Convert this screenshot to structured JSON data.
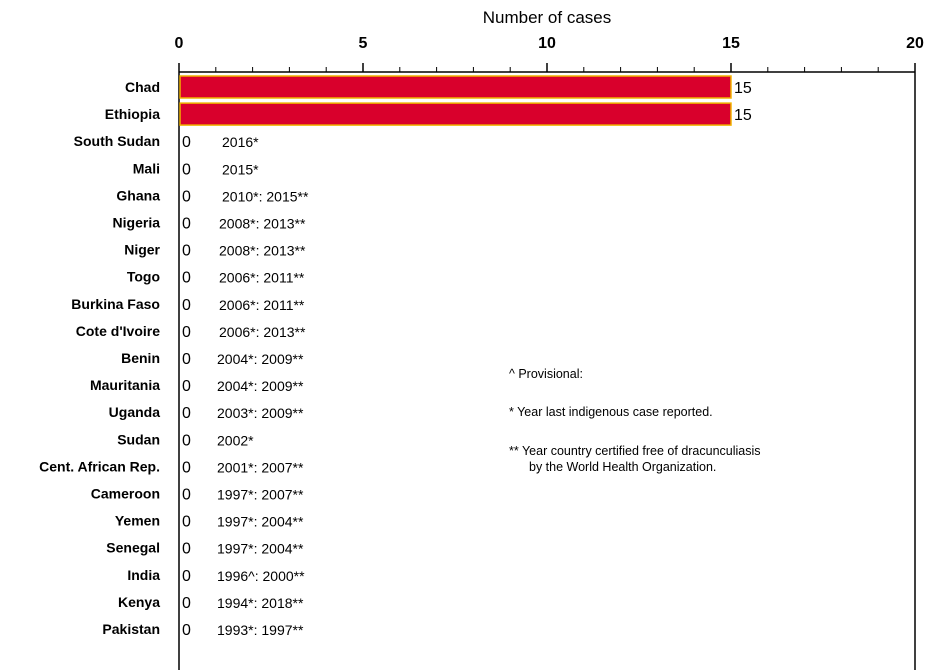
{
  "chart_data": {
    "type": "bar",
    "orientation": "horizontal",
    "xlabel": "Number of cases",
    "xlim": [
      0,
      20
    ],
    "x_ticks": [
      "0",
      "5",
      "10",
      "15",
      "20"
    ],
    "bar_color": "#d9002c",
    "bar_edge_color": "#f0b400",
    "categories": [
      "Chad",
      "Ethiopia",
      "South Sudan",
      "Mali",
      "Ghana",
      "Nigeria",
      "Niger",
      "Togo",
      "Burkina Faso",
      "Cote d'Ivoire",
      "Benin",
      "Mauritania",
      "Uganda",
      "Sudan",
      "Cent. African Rep.",
      "Cameroon",
      "Yemen",
      "Senegal",
      "India",
      "Kenya",
      "Pakistan"
    ],
    "values": [
      15,
      15,
      0,
      0,
      0,
      0,
      0,
      0,
      0,
      0,
      0,
      0,
      0,
      0,
      0,
      0,
      0,
      0,
      0,
      0,
      0
    ],
    "value_labels": [
      "15",
      "15",
      "0",
      "0",
      "0",
      "0",
      "0",
      "0",
      "0",
      "0",
      "0",
      "0",
      "0",
      "0",
      "0",
      "0",
      "0",
      "0",
      "0",
      "0",
      "0"
    ],
    "notes": [
      "",
      "",
      "2016*",
      "2015*",
      "2010*: 2015**",
      "2008*: 2013**",
      "2008*: 2013**",
      "2006*: 2011**",
      "2006*: 2011**",
      "2006*: 2013**",
      "2004*: 2009**",
      "2004*: 2009**",
      "2003*: 2009**",
      "2002*",
      "2001*: 2007**",
      "1997*: 2007**",
      "1997*: 2004**",
      "1997*: 2004**",
      "1996^: 2000**",
      "1994*: 2018**",
      "1993*: 1997**"
    ],
    "legend": {
      "provisional": "^ Provisional:",
      "indigenous": "*  Year last indigenous case reported.",
      "certified_line1": "** Year country certified free of dracunculiasis",
      "certified_line2": "by the World Health Organization."
    },
    "grid": false
  }
}
